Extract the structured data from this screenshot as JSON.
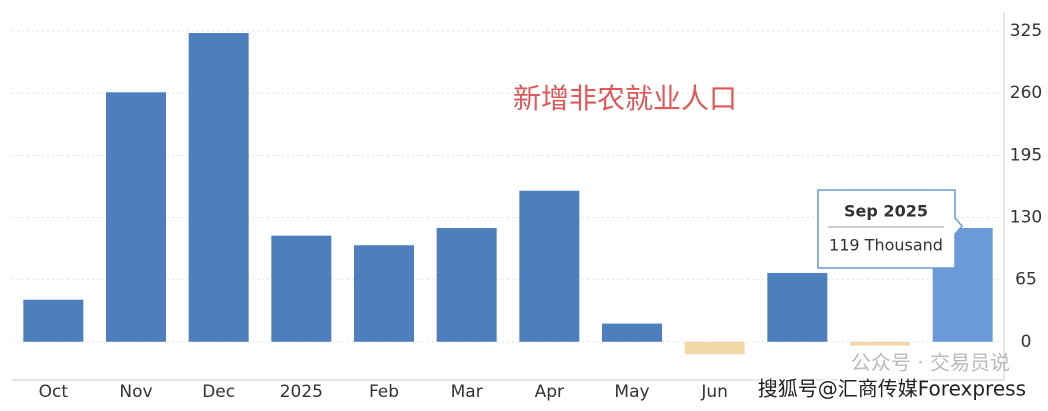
{
  "chart_data": {
    "type": "bar",
    "annotation": "新增非农就业人口",
    "categories": [
      "Oct",
      "Nov",
      "Dec",
      "2025",
      "Feb",
      "Mar",
      "Apr",
      "May",
      "Jun",
      null,
      null,
      null
    ],
    "values": [
      44,
      261,
      323,
      111,
      101,
      119,
      158,
      19,
      -13,
      72,
      -4,
      119
    ],
    "colors": [
      "#4e7fbd",
      "#4e7fbd",
      "#4e7fbd",
      "#4e7fbd",
      "#4e7fbd",
      "#4e7fbd",
      "#4e7fbd",
      "#4e7fbd",
      "#f1d9a7",
      "#4e7fbd",
      "#f1d9a7",
      "#6a9bd8"
    ],
    "ylim": [
      -40,
      345
    ],
    "yticks": [
      0,
      65,
      130,
      195,
      260,
      325
    ],
    "grid": true,
    "tooltip": {
      "title": "Sep 2025",
      "text": "119 Thousand"
    },
    "watermarks": [
      "公众号 · 交易员说",
      "搜狐号@汇商传媒Forexpress"
    ]
  }
}
